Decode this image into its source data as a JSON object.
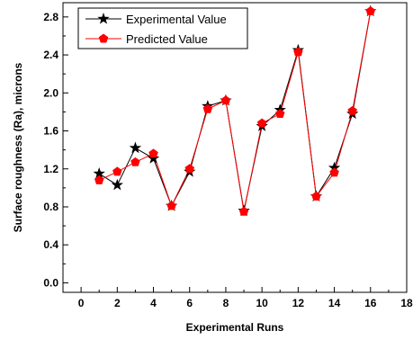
{
  "chart_data": {
    "type": "line",
    "xlabel": "Experimental Runs",
    "ylabel": "Surface roughness (Ra), microns",
    "xlim": [
      -1,
      18
    ],
    "ylim": [
      -0.1,
      2.95
    ],
    "x_ticks": [
      0,
      2,
      4,
      6,
      8,
      10,
      12,
      14,
      16,
      18
    ],
    "y_ticks": [
      0.0,
      0.4,
      0.8,
      1.2,
      1.6,
      2.0,
      2.4,
      2.8
    ],
    "x_tick_labels": [
      "0",
      "2",
      "4",
      "6",
      "8",
      "10",
      "12",
      "14",
      "16",
      "18"
    ],
    "y_tick_labels": [
      "0.0",
      "0.4",
      "0.8",
      "1.2",
      "1.6",
      "2.0",
      "2.4",
      "2.8"
    ],
    "grid": false,
    "legend_position": "top-left",
    "x": [
      1,
      2,
      3,
      4,
      5,
      6,
      7,
      8,
      9,
      10,
      11,
      12,
      13,
      14,
      15,
      16
    ],
    "series": [
      {
        "name": "Experimental Value",
        "color": "#000000",
        "marker": "star",
        "values": [
          1.15,
          1.03,
          1.42,
          1.31,
          0.81,
          1.17,
          1.86,
          1.92,
          0.76,
          1.65,
          1.82,
          2.45,
          0.91,
          1.21,
          1.78,
          2.86
        ]
      },
      {
        "name": "Predicted Value",
        "color": "#ff0000",
        "marker": "pentagon",
        "values": [
          1.08,
          1.17,
          1.27,
          1.36,
          0.81,
          1.2,
          1.83,
          1.92,
          0.75,
          1.68,
          1.78,
          2.43,
          0.91,
          1.16,
          1.81,
          2.86
        ]
      }
    ]
  }
}
